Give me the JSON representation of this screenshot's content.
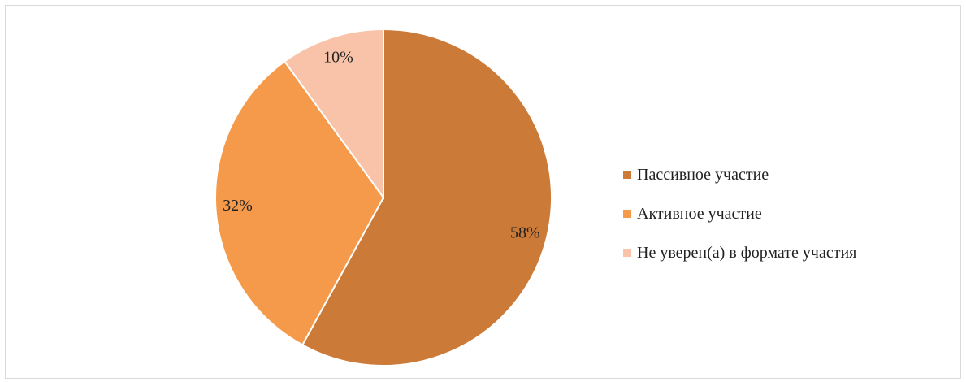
{
  "chart_data": {
    "type": "pie",
    "slices": [
      {
        "label": "Пассивное участие",
        "value": 58,
        "value_label": "58%",
        "color": "#CC7A38"
      },
      {
        "label": "Активное участие",
        "value": 32,
        "value_label": "32%",
        "color": "#F59A4A"
      },
      {
        "label": "Не уверен(а) в формате участия",
        "value": 10,
        "value_label": "10%",
        "color": "#F8C3A8"
      }
    ],
    "start_angle": "12 o'clock",
    "direction": "clockwise",
    "legend_position": "right"
  }
}
